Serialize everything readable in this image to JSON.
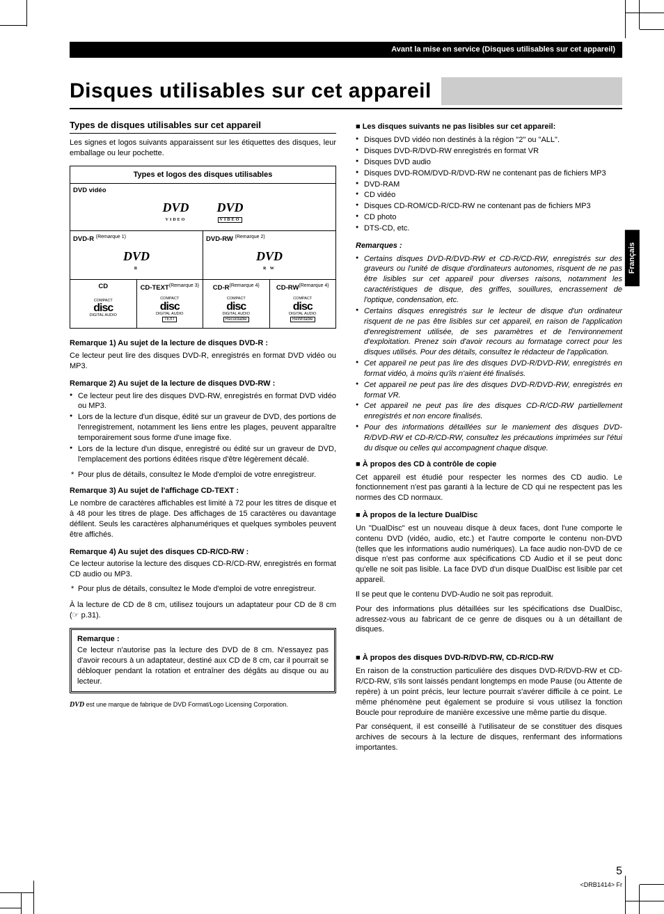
{
  "page": {
    "header_breadcrumb": "Avant la mise en service (Disques utilisables sur cet appareil)",
    "main_title": "Disques utilisables sur cet appareil",
    "page_number": "5",
    "page_ref": "<DRB1414> Fr",
    "side_tab": "Français"
  },
  "left": {
    "subsection": "Types de disques utilisables sur cet appareil",
    "intro": "Les signes et logos suivants apparaissent sur les étiquettes des disques, leur emballage ou leur pochette.",
    "table_head": "Types et logos des disques utilisables",
    "row1_label": "DVD vidéo",
    "row2a_label": "DVD-R",
    "row2a_note": "(Remarque 1)",
    "row2b_label": "DVD-RW",
    "row2b_note": "(Remarque 2)",
    "row3a_label": "CD",
    "row3b_label": "CD-TEXT",
    "row3b_note": "(Remarque 3)",
    "row3c_label": "CD-R",
    "row3c_note": "(Remarque 4)",
    "row3d_label": "CD-RW",
    "row3d_note": "(Remarque 4)",
    "logo_dvd": "DVD",
    "logo_video": "VIDEO",
    "logo_r": "R",
    "logo_rw": "R W",
    "logo_compact": "COMPACT",
    "logo_disc": "disc",
    "logo_da": "DIGITAL AUDIO",
    "logo_text": "TEXT",
    "logo_rec": "Recordable",
    "logo_rew": "ReWritable",
    "rem1_head": "Remarque 1)  Au sujet de la lecture de disques DVD-R :",
    "rem1_body": "Ce lecteur peut lire des disques DVD-R, enregistrés en format DVD vidéo ou MP3.",
    "rem2_head": "Remarque 2)  Au sujet de la lecture de disques DVD-RW :",
    "rem2_b1": "Ce lecteur peut lire des disques DVD-RW, enregistrés en format DVD vidéo ou MP3.",
    "rem2_b2": "Lors de la lecture d'un disque, édité sur un graveur de DVD, des portions de l'enregistrement, notamment les liens entre les plages, peuvent apparaître temporairement sous forme d'une image fixe.",
    "rem2_b3": "Lors de la lecture d'un disque, enregistré ou édité sur un graveur de DVD, l'emplacement des portions éditées risque d'être légèrement décalé.",
    "rem2_star": "Pour plus de détails, consultez le Mode d'emploi de votre enregistreur.",
    "rem3_head": "Remarque 3)  Au sujet de l'affichage CD-TEXT :",
    "rem3_body": "Le nombre de caractères affichables est limité à 72 pour les titres de disque et à 48 pour les titres de plage. Des affichages de 15 caractères ou davantage défilent. Seuls les caractères alphanumériques et quelques symboles peuvent être affichés.",
    "rem4_head": "Remarque 4)  Au sujet des disques CD-R/CD-RW :",
    "rem4_body": "Ce lecteur autorise la lecture des disques CD-R/CD-RW, enregistrés en format CD audio ou MP3.",
    "rem4_star": "Pour plus de détails, consultez le Mode d'emploi de votre enregistreur.",
    "eightcm": "À la lecture de CD de 8 cm, utilisez toujours un adaptateur pour CD de 8 cm (☞ p.31).",
    "notebox_head": "Remarque :",
    "notebox_body": "Ce lecteur n'autorise pas la lecture des DVD de 8 cm. N'essayez pas d'avoir recours à un adaptateur, destiné aux CD de 8 cm, car il pourrait se débloquer pendant la rotation et entraîner des dégâts au disque ou au lecteur.",
    "trademark": " est une marque de fabrique de DVD Format/Logo Licensing Corporation."
  },
  "right": {
    "unread_head": "Les disques suivants ne pas lisibles sur cet appareil:",
    "unread": [
      "Disques DVD vidéo non destinés à la région \"2\" ou \"ALL\".",
      "Disques DVD-R/DVD-RW enregistrés en format VR",
      "Disques DVD audio",
      "Disques DVD-ROM/DVD-R/DVD-RW ne contenant pas de fichiers MP3",
      "DVD-RAM",
      "CD vidéo",
      "Disques CD-ROM/CD-R/CD-RW ne contenant pas de fichiers MP3",
      "CD photo",
      "DTS-CD, etc."
    ],
    "remarks_head": "Remarques :",
    "remarks": [
      "Certains disques DVD-R/DVD-RW et CD-R/CD-RW, enregistrés sur des graveurs ou l'unité de disque d'ordinateurs autonomes, risquent de ne pas être lisibles sur cet appareil pour diverses raisons, notamment les caractéristiques de disque, des griffes, souillures, encrassement de l'optique, condensation, etc.",
      "Certains disques enregistrés sur le lecteur de disque d'un ordinateur risquent de ne pas être lisibles sur cet appareil, en raison de l'application d'enregistrement utilisée, de ses paramètres et de l'environnement d'exploitation. Prenez soin d'avoir recours au formatage correct pour les disques utilisés. Pour des détails, consultez le rédacteur de l'application.",
      "Cet appareil ne peut pas lire des disques DVD-R/DVD-RW, enregistrés en format vidéo, à moins qu'ils n'aient été finalisés.",
      "Cet appareil ne peut pas lire des disques DVD-R/DVD-RW, enregistrés en format VR.",
      "Cet appareil ne peut pas lire des disques CD-R/CD-RW partiellement enregistrés et non encore finalisés.",
      "Pour des informations détaillées sur le maniement des disques DVD-R/DVD-RW et CD-R/CD-RW, consultez les précautions imprimées sur l'étui du disque ou celles qui accompagnent chaque disque."
    ],
    "copy_head": "À propos des CD à contrôle de copie",
    "copy_body": "Cet appareil est étudié pour respecter les normes des CD audio. Le fonctionnement n'est pas garanti à la lecture de CD qui ne respectent pas les normes des CD normaux.",
    "dual_head": "À propos de la lecture DualDisc",
    "dual_p1": "Un \"DualDisc\" est un nouveau disque à deux faces, dont l'une comporte le contenu DVD (vidéo, audio, etc.) et l'autre comporte le contenu non-DVD (telles que les informations audio numériques). La face audio non-DVD de ce disque n'est pas conforme aux spécifications CD Audio et il se peut donc qu'elle ne soit pas lisible. La face DVD d'un disque DualDisc est lisible par cet appareil.",
    "dual_p2": "Il se peut que le contenu DVD-Audio ne soit pas reproduit.",
    "dual_p3": "Pour des informations plus détaillées sur les spécifications dse DualDisc, adressez-vous au fabricant de ce genre de disques ou à un détaillant de disques.",
    "rwcd_head": "À propos des disques DVD-R/DVD-RW, CD-R/CD-RW",
    "rwcd_p1": "En raison de la construction particulière des disques DVD-R/DVD-RW et CD-R/CD-RW, s'ils sont laissés pendant longtemps en mode Pause (ou Attente de repère) à un point précis, leur lecture pourrait s'avérer difficile à ce point. Le même phénomène peut également se produire si vous utilisez la fonction Boucle pour reproduire de manière excessive une même partie du disque.",
    "rwcd_p2": "Par conséquent, il est conseillé à l'utilisateur de se constituer des disques archives de secours à la lecture de disques, renfermant des informations importantes."
  },
  "colors": {
    "black": "#000000",
    "white": "#ffffff",
    "grey_bar": "#cccccc"
  }
}
